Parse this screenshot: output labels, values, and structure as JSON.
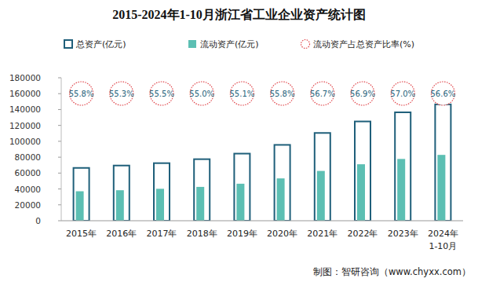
{
  "chart_data": {
    "type": "bar",
    "title": "2015-2024年1-10月浙江省工业企业资产统计图",
    "source": "制图：智研咨询（www.chyxx.com）",
    "categories": [
      "2015年",
      "2016年",
      "2017年",
      "2018年",
      "2019年",
      "2020年",
      "2021年",
      "2022年",
      "2023年",
      "2024年\n1-10月"
    ],
    "series": [
      {
        "name": "总资产(亿元)",
        "type": "bar",
        "color": "#1f5f7a",
        "values": [
          66500,
          69500,
          72500,
          77500,
          84500,
          95500,
          110500,
          125000,
          136500,
          146500
        ]
      },
      {
        "name": "流动资产(亿元)",
        "type": "bar",
        "color": "#5cbfb3",
        "values": [
          37100,
          38400,
          40200,
          42600,
          46600,
          53300,
          62700,
          71100,
          77800,
          82900
        ]
      },
      {
        "name": "流动资产占总资产比率(%)",
        "type": "label",
        "color": "#e0474c",
        "marker": "circle",
        "line_style": "dotted",
        "values": [
          55.8,
          55.3,
          55.5,
          55.0,
          55.1,
          55.8,
          56.7,
          56.9,
          57.0,
          56.6
        ],
        "value_labels": [
          "55.8%",
          "55.3%",
          "55.5%",
          "55.0%",
          "55.1%",
          "55.8%",
          "56.7%",
          "56.9%",
          "57.0%",
          "56.6%"
        ]
      }
    ],
    "ylim": [
      0,
      180000
    ],
    "yticks": [
      0,
      20000,
      40000,
      60000,
      80000,
      100000,
      120000,
      140000,
      160000,
      180000
    ],
    "legend": "top",
    "grid": false,
    "data_labels": true
  }
}
